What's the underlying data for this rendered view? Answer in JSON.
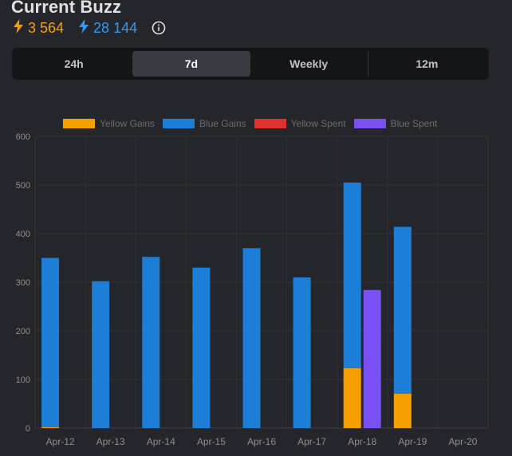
{
  "header": {
    "title": "Current Buzz",
    "yellow_amount": "3 564",
    "blue_amount": "28 144"
  },
  "tabs": [
    {
      "label": "24h",
      "active": false
    },
    {
      "label": "7d",
      "active": true
    },
    {
      "label": "Weekly",
      "active": false
    },
    {
      "label": "12m",
      "active": false
    }
  ],
  "colors": {
    "yellow_gains": "#f59f00",
    "blue_gains": "#1c7ed6",
    "yellow_spent": "#e03131",
    "blue_spent": "#7950f2"
  },
  "chart_data": {
    "type": "bar",
    "categories": [
      "Apr-12",
      "Apr-13",
      "Apr-14",
      "Apr-15",
      "Apr-16",
      "Apr-17",
      "Apr-18",
      "Apr-19",
      "Apr-20"
    ],
    "series": [
      {
        "name": "Yellow Gains",
        "stack": "gains",
        "values": [
          2,
          0,
          0,
          0,
          0,
          0,
          123,
          71,
          0
        ]
      },
      {
        "name": "Blue Gains",
        "stack": "gains",
        "values": [
          348,
          302,
          352,
          330,
          370,
          310,
          382,
          343,
          0
        ]
      },
      {
        "name": "Yellow Spent",
        "stack": "spent",
        "values": [
          0,
          0,
          0,
          0,
          0,
          0,
          0,
          0,
          0
        ]
      },
      {
        "name": "Blue Spent",
        "stack": "spent",
        "values": [
          0,
          0,
          0,
          0,
          0,
          0,
          284,
          0,
          0
        ]
      }
    ],
    "yticks": [
      0,
      100,
      200,
      300,
      400,
      500,
      600
    ],
    "ylim": [
      0,
      600
    ],
    "grid": true,
    "legend_position": "top"
  }
}
